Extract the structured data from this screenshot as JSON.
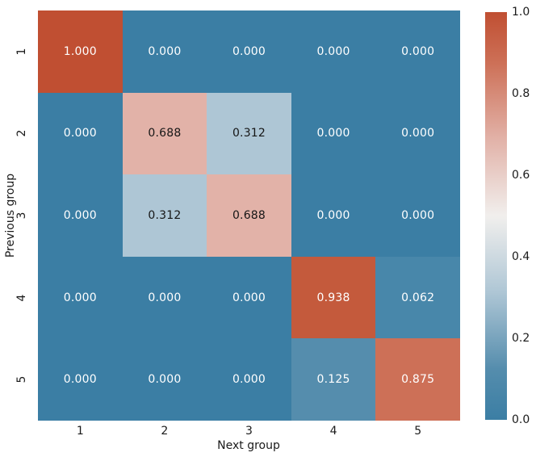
{
  "chart_data": {
    "type": "heatmap",
    "title": "",
    "xlabel": "Next group",
    "ylabel": "Previous group",
    "x_tick_labels": [
      "1",
      "2",
      "3",
      "4",
      "5"
    ],
    "y_tick_labels": [
      "1",
      "2",
      "3",
      "4",
      "5"
    ],
    "matrix": [
      [
        1.0,
        0.0,
        0.0,
        0.0,
        0.0
      ],
      [
        0.0,
        0.688,
        0.312,
        0.0,
        0.0
      ],
      [
        0.0,
        0.312,
        0.688,
        0.0,
        0.0
      ],
      [
        0.0,
        0.0,
        0.0,
        0.938,
        0.062
      ],
      [
        0.0,
        0.0,
        0.0,
        0.125,
        0.875
      ]
    ],
    "cell_labels": [
      [
        "1.000",
        "0.000",
        "0.000",
        "0.000",
        "0.000"
      ],
      [
        "0.000",
        "0.688",
        "0.312",
        "0.000",
        "0.000"
      ],
      [
        "0.000",
        "0.312",
        "0.688",
        "0.000",
        "0.000"
      ],
      [
        "0.000",
        "0.000",
        "0.000",
        "0.938",
        "0.062"
      ],
      [
        "0.000",
        "0.000",
        "0.000",
        "0.125",
        "0.875"
      ]
    ],
    "value_colors": {
      "0.000": "#3b7ea4",
      "0.062": "#4887aa",
      "0.125": "#558dad",
      "0.312": "#aec6d5",
      "0.688": "#e2b2a8",
      "0.875": "#cd7057",
      "0.938": "#c45a3c",
      "1.000": "#c04f32"
    },
    "dark_text_values": [
      "0.312",
      "0.688"
    ],
    "annot_text_light": "#ffffff",
    "annot_text_dark": "#161616",
    "grid_on": false,
    "colorbar": {
      "min": 0.0,
      "max": 1.0,
      "tick_labels": [
        "1.0",
        "0.8",
        "0.6",
        "0.4",
        "0.2",
        "0.0"
      ],
      "gradient_stops": [
        {
          "pos": 0,
          "color": "#3b7ea4"
        },
        {
          "pos": 12.5,
          "color": "#558dad"
        },
        {
          "pos": 31.2,
          "color": "#aec6d5"
        },
        {
          "pos": 50,
          "color": "#f1efed"
        },
        {
          "pos": 68.8,
          "color": "#e2b2a8"
        },
        {
          "pos": 87.5,
          "color": "#cd7057"
        },
        {
          "pos": 100,
          "color": "#c04f32"
        }
      ]
    }
  }
}
